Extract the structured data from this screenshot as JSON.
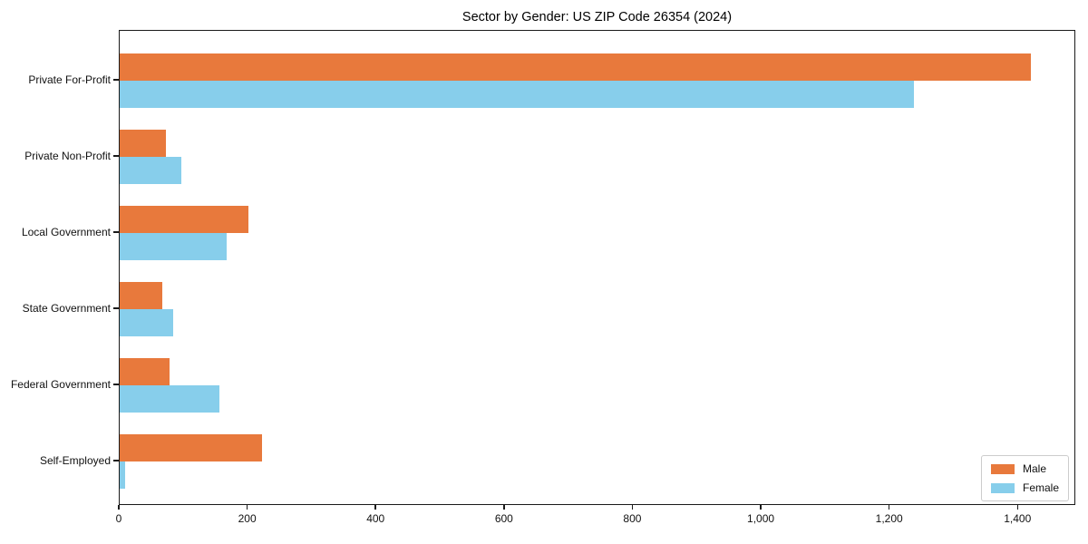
{
  "chart_data": {
    "type": "bar",
    "orientation": "horizontal",
    "title": "Sector by Gender: US ZIP Code 26354 (2024)",
    "categories": [
      "Private For-Profit",
      "Private Non-Profit",
      "Local Government",
      "State Government",
      "Federal Government",
      "Self-Employed"
    ],
    "series": [
      {
        "name": "Male",
        "color": "#e8793c",
        "values": [
          1420,
          72,
          201,
          66,
          78,
          222
        ]
      },
      {
        "name": "Female",
        "color": "#87ceeb",
        "values": [
          1237,
          96,
          166,
          84,
          156,
          8
        ]
      }
    ],
    "xlabel": "",
    "ylabel": "",
    "xlim": [
      0,
      1490
    ],
    "xticks": [
      0,
      200,
      400,
      600,
      800,
      1000,
      1200,
      1400
    ],
    "xtick_labels": [
      "0",
      "200",
      "400",
      "600",
      "800",
      "1,000",
      "1,200",
      "1,400"
    ],
    "grid": false,
    "legend": {
      "position": "lower right",
      "entries": [
        "Male",
        "Female"
      ]
    },
    "axis_color": "#1a1a1a",
    "background_color": "#ffffff"
  }
}
